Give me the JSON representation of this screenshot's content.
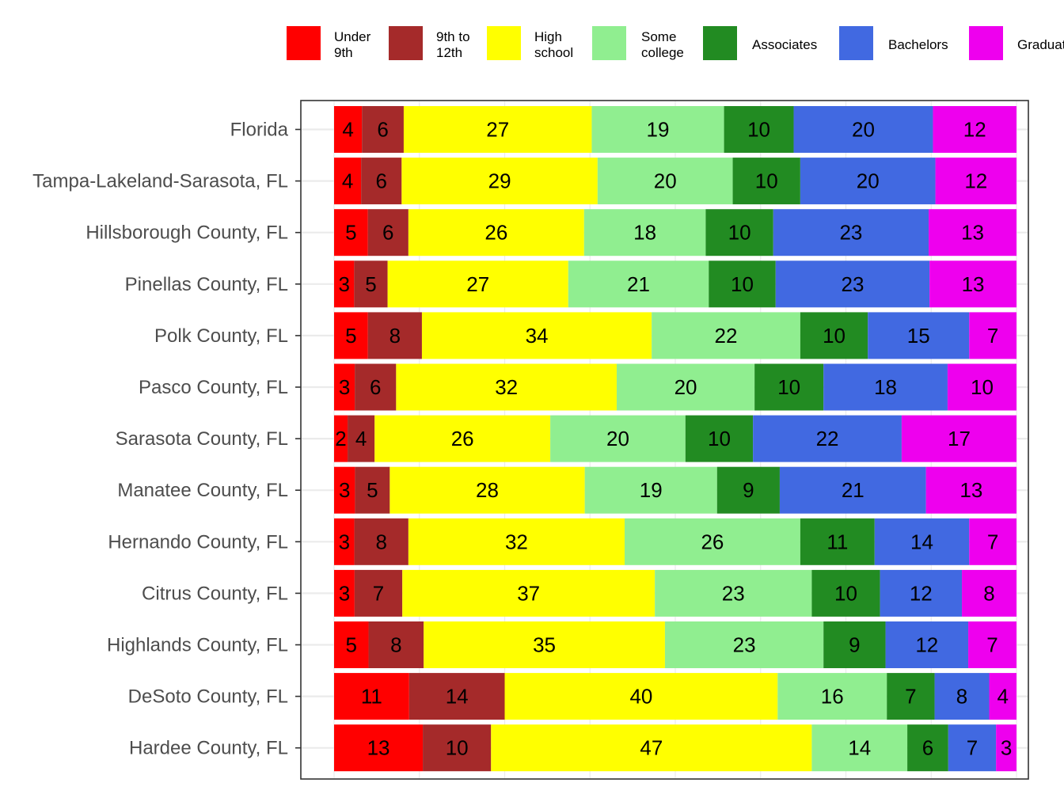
{
  "chart_data": {
    "type": "bar",
    "orientation": "horizontal",
    "stacked": true,
    "title": "",
    "xlabel": "",
    "ylabel": "",
    "grid": true,
    "legend_position": "top",
    "categories": [
      "Florida",
      "Tampa-Lakeland-Sarasota, FL",
      "Hillsborough County, FL",
      "Pinellas County, FL",
      "Polk County, FL",
      "Pasco County, FL",
      "Sarasota County, FL",
      "Manatee County, FL",
      "Hernando County, FL",
      "Citrus County, FL",
      "Highlands County, FL",
      "DeSoto County, FL",
      "Hardee County, FL"
    ],
    "series": [
      {
        "name": "Under 9th",
        "legend_lines": [
          "Under",
          "9th"
        ],
        "color": "#FF0000",
        "values": [
          4,
          4,
          5,
          3,
          5,
          3,
          2,
          3,
          3,
          3,
          5,
          11,
          13
        ]
      },
      {
        "name": "9th to 12th",
        "legend_lines": [
          "9th to",
          "12th"
        ],
        "color": "#A52A2A",
        "values": [
          6,
          6,
          6,
          5,
          8,
          6,
          4,
          5,
          8,
          7,
          8,
          14,
          10
        ]
      },
      {
        "name": "High school",
        "legend_lines": [
          "High",
          "school"
        ],
        "color": "#FFFF00",
        "values": [
          27,
          29,
          26,
          27,
          34,
          32,
          26,
          28,
          32,
          37,
          35,
          40,
          47
        ]
      },
      {
        "name": "Some college",
        "legend_lines": [
          "Some",
          "college"
        ],
        "color": "#90EE90",
        "values": [
          19,
          20,
          18,
          21,
          22,
          20,
          20,
          19,
          26,
          23,
          23,
          16,
          14
        ]
      },
      {
        "name": "Associates",
        "legend_lines": [
          "Associates"
        ],
        "color": "#228B22",
        "values": [
          10,
          10,
          10,
          10,
          10,
          10,
          10,
          9,
          11,
          10,
          9,
          7,
          6
        ]
      },
      {
        "name": "Bachelors",
        "legend_lines": [
          "Bachelors"
        ],
        "color": "#4169E1",
        "values": [
          20,
          20,
          23,
          23,
          15,
          18,
          22,
          21,
          14,
          12,
          12,
          8,
          7
        ]
      },
      {
        "name": "Graduate",
        "legend_lines": [
          "Graduate"
        ],
        "color": "#EE00EE",
        "values": [
          12,
          12,
          13,
          13,
          7,
          10,
          17,
          13,
          7,
          8,
          7,
          4,
          3
        ]
      }
    ]
  }
}
